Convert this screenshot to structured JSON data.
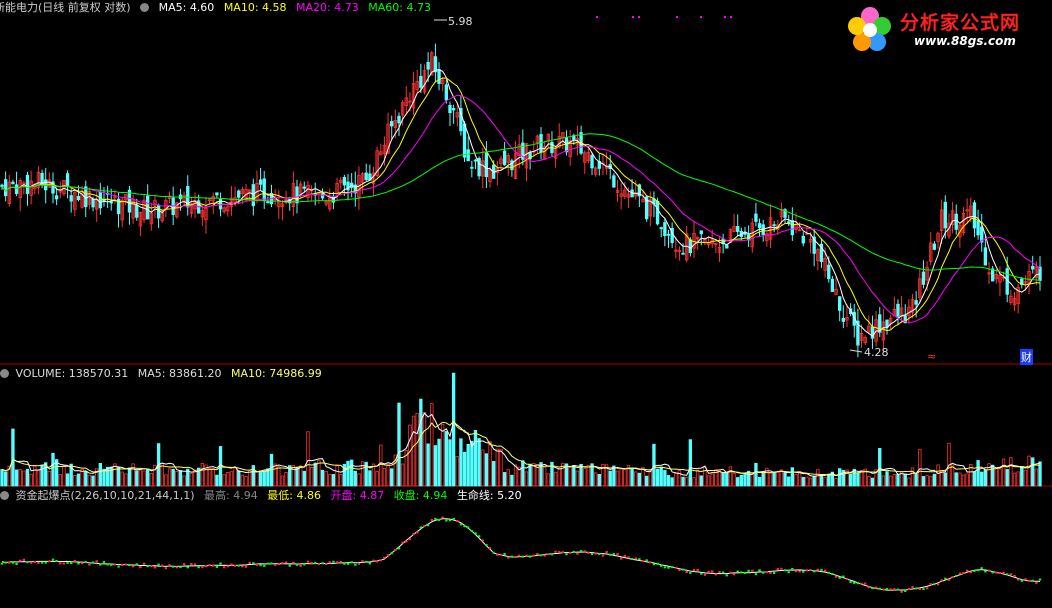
{
  "colors": {
    "up": "#ff3232",
    "down": "#54ffff",
    "bg": "#000000",
    "ma5": "#ffffff",
    "ma10": "#ffff00",
    "ma20": "#ff00ff",
    "ma60": "#00ff00",
    "life": "#ffffff",
    "sep": "#aa0000"
  },
  "price_header": {
    "title": "新能电力(日线 前复权 对数)",
    "ma5_label": "MA5:",
    "ma5_value": "4.60",
    "ma10_label": "MA10:",
    "ma10_value": "4.58",
    "ma20_label": "MA20:",
    "ma20_value": "4.73",
    "ma60_label": "MA60:",
    "ma60_value": "4.73"
  },
  "price_annotations": {
    "high_label": "5.98",
    "low_label": "4.28",
    "marker_red": "≈",
    "marker_cai": "财"
  },
  "volume_header": {
    "label": "VOLUME:",
    "value": "138570.31",
    "ma5_label": "MA5:",
    "ma5_value": "83861.20",
    "ma10_label": "MA10:",
    "ma10_value": "74986.99"
  },
  "indicator_header": {
    "name": "资金起爆点(2,26,10,10,21,44,1,1)",
    "high_label": "最高:",
    "high_value": "4.94",
    "low_label": "最低:",
    "low_value": "4.86",
    "open_label": "开盘:",
    "open_value": "4.87",
    "close_label": "收盘:",
    "close_value": "4.94",
    "life_label": "生命线:",
    "life_value": "5.20"
  },
  "logo": {
    "title": "分析家公式网",
    "url": "www.88gs.com"
  },
  "chart_data": {
    "type": "candlestick",
    "price_log_scale": true,
    "price_range": [
      4.2,
      6.1
    ],
    "volume_range": [
      0,
      180000
    ],
    "indicator_range": [
      4.0,
      6.5
    ],
    "price_anchors": [
      {
        "i": 0,
        "p": 5.06
      },
      {
        "i": 10,
        "p": 5.08
      },
      {
        "i": 25,
        "p": 5.0
      },
      {
        "i": 40,
        "p": 4.93
      },
      {
        "i": 55,
        "p": 4.98
      },
      {
        "i": 75,
        "p": 5.03
      },
      {
        "i": 88,
        "p": 5.0
      },
      {
        "i": 100,
        "p": 5.1
      },
      {
        "i": 112,
        "p": 5.6
      },
      {
        "i": 118,
        "p": 5.78
      },
      {
        "i": 124,
        "p": 5.5
      },
      {
        "i": 128,
        "p": 5.2
      },
      {
        "i": 135,
        "p": 5.15
      },
      {
        "i": 148,
        "p": 5.3
      },
      {
        "i": 156,
        "p": 5.3
      },
      {
        "i": 164,
        "p": 5.2
      },
      {
        "i": 172,
        "p": 5.02
      },
      {
        "i": 181,
        "p": 4.88
      },
      {
        "i": 186,
        "p": 4.75
      },
      {
        "i": 195,
        "p": 4.75
      },
      {
        "i": 205,
        "p": 4.82
      },
      {
        "i": 215,
        "p": 4.88
      },
      {
        "i": 223,
        "p": 4.75
      },
      {
        "i": 230,
        "p": 4.45
      },
      {
        "i": 235,
        "p": 4.3
      },
      {
        "i": 243,
        "p": 4.38
      },
      {
        "i": 250,
        "p": 4.42
      },
      {
        "i": 258,
        "p": 4.88
      },
      {
        "i": 266,
        "p": 4.9
      },
      {
        "i": 272,
        "p": 4.6
      },
      {
        "i": 278,
        "p": 4.52
      },
      {
        "i": 285,
        "p": 4.62
      }
    ],
    "volume_anchors": [
      {
        "i": 0,
        "v": 28000
      },
      {
        "i": 60,
        "v": 26000
      },
      {
        "i": 98,
        "v": 30000
      },
      {
        "i": 108,
        "v": 40000
      },
      {
        "i": 116,
        "v": 120000
      },
      {
        "i": 122,
        "v": 80000
      },
      {
        "i": 130,
        "v": 70000
      },
      {
        "i": 140,
        "v": 30000
      },
      {
        "i": 170,
        "v": 24000
      },
      {
        "i": 230,
        "v": 20000
      },
      {
        "i": 250,
        "v": 22000
      },
      {
        "i": 265,
        "v": 28000
      },
      {
        "i": 285,
        "v": 40000
      }
    ],
    "candle_count": 286
  }
}
